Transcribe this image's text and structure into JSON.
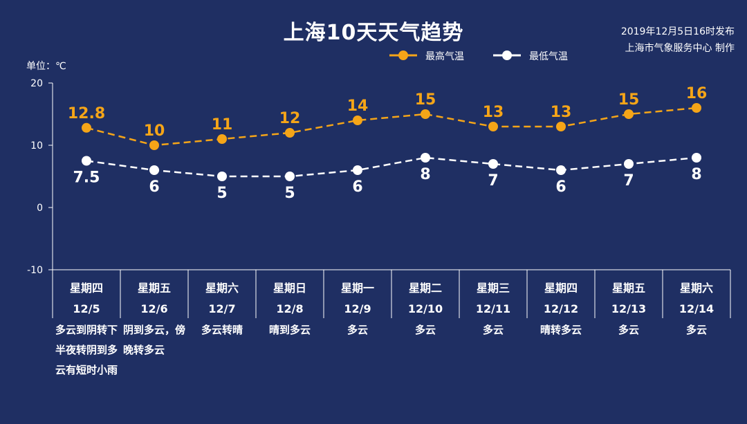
{
  "header": {
    "title": "上海10天天气趋势",
    "publish_time": "2019年12月5日16时发布",
    "publisher": "上海市气象服务中心 制作"
  },
  "colors": {
    "background": "#1f2f63",
    "high": "#f5a518",
    "low": "#ffffff",
    "axis": "#ffffff"
  },
  "chart_data": {
    "type": "line",
    "unit_label": "单位：℃",
    "ylim": [
      -10,
      20
    ],
    "yticks": [
      20,
      10,
      0,
      -10
    ],
    "legend_position": "top",
    "series": [
      {
        "name": "最高气温",
        "line_style": "dashed",
        "values": [
          12.8,
          10,
          11,
          12,
          14,
          15,
          13,
          13,
          15,
          16
        ]
      },
      {
        "name": "最低气温",
        "line_style": "dashed",
        "values": [
          7.5,
          6,
          5,
          5,
          6,
          8,
          7,
          6,
          7,
          8
        ]
      }
    ],
    "days": [
      {
        "weekday": "星期四",
        "date": "12/5",
        "weather": "多云到阴转下半夜转阴到多云有短时小雨"
      },
      {
        "weekday": "星期五",
        "date": "12/6",
        "weather": "阴到多云，傍晚转多云"
      },
      {
        "weekday": "星期六",
        "date": "12/7",
        "weather": "多云转晴"
      },
      {
        "weekday": "星期日",
        "date": "12/8",
        "weather": "晴到多云"
      },
      {
        "weekday": "星期一",
        "date": "12/9",
        "weather": "多云"
      },
      {
        "weekday": "星期二",
        "date": "12/10",
        "weather": "多云"
      },
      {
        "weekday": "星期三",
        "date": "12/11",
        "weather": "多云"
      },
      {
        "weekday": "星期四",
        "date": "12/12",
        "weather": "晴转多云"
      },
      {
        "weekday": "星期五",
        "date": "12/13",
        "weather": "多云"
      },
      {
        "weekday": "星期六",
        "date": "12/14",
        "weather": "多云"
      }
    ]
  }
}
